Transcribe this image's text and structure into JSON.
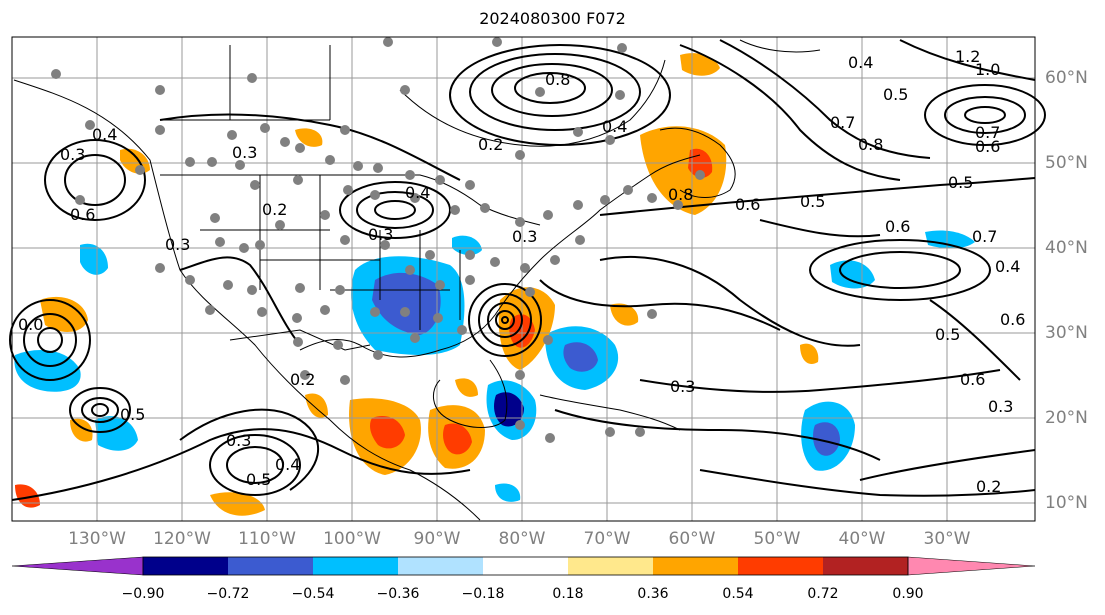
{
  "title": "2024080300 F072",
  "map": {
    "lon_labels": [
      "130°W",
      "120°W",
      "110°W",
      "100°W",
      "90°W",
      "80°W",
      "70°W",
      "60°W",
      "50°W",
      "40°W",
      "30°W"
    ],
    "lat_labels": [
      "60°N",
      "50°N",
      "40°N",
      "30°N",
      "20°N",
      "10°N"
    ],
    "contour_labels": [
      "0.8",
      "0.2",
      "0.4",
      "0.3",
      "0.3",
      "0.2",
      "0.4",
      "0.3",
      "0.6",
      "0.8",
      "0.6",
      "0.5",
      "0.7",
      "0.6",
      "0.5",
      "0.7",
      "0.4",
      "0.6",
      "0.5",
      "0.6",
      "0.3",
      "0.2",
      "0.3",
      "0.5",
      "0.4",
      "0.3",
      "1.0",
      "1.2",
      "0.4",
      "0.7",
      "0.8",
      "0.5",
      "0.2",
      "0.6",
      "0.3",
      "0.3",
      "0.5",
      "0.4",
      "0.0"
    ],
    "colors": {
      "contour": "#000000",
      "grid": "#999999",
      "coast": "#000000",
      "station_dot": "#808080",
      "land_fill": "#ffffff"
    }
  },
  "colorbar": {
    "tick_labels": [
      "−0.90",
      "−0.72",
      "−0.54",
      "−0.36",
      "−0.18",
      "0.18",
      "0.36",
      "0.54",
      "0.72",
      "0.90"
    ],
    "colors": [
      "#9932cc",
      "#00008b",
      "#3c5bd0",
      "#00bfff",
      "#b0e2ff",
      "#ffffff",
      "#ffe88c",
      "#ffa500",
      "#ff3c00",
      "#b22222",
      "#ff88b0"
    ]
  }
}
